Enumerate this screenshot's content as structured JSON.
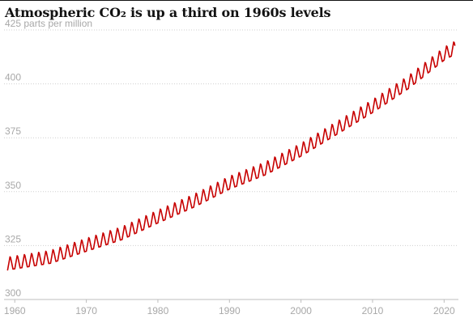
{
  "chart_data": {
    "type": "line",
    "title": "Atmospheric CO₂ is up a third on 1960s levels",
    "unit_label": "parts per million",
    "xlabel": "",
    "ylabel": "",
    "xlim": [
      1958.5,
      2022
    ],
    "ylim": [
      300,
      425
    ],
    "x_ticks": [
      1960,
      1970,
      1980,
      1990,
      2000,
      2010,
      2020
    ],
    "y_ticks": [
      300,
      325,
      350,
      375,
      400,
      425
    ],
    "grid": true,
    "grid_style": "horizontal dotted",
    "legend": "none",
    "series": [
      {
        "color": "#c70000",
        "sampling": "monthly",
        "start_year": 1959,
        "end_year": 2021.5,
        "trend_points": [
          [
            1959,
            316.9
          ],
          [
            1965,
            320.0
          ],
          [
            1970,
            325.6
          ],
          [
            1975,
            331.0
          ],
          [
            1980,
            338.7
          ],
          [
            1985,
            346.0
          ],
          [
            1990,
            354.4
          ],
          [
            1995,
            361.0
          ],
          [
            2000,
            369.7
          ],
          [
            2005,
            379.8
          ],
          [
            2010,
            389.9
          ],
          [
            2015,
            401.0
          ],
          [
            2020,
            414.2
          ],
          [
            2021.5,
            417.0
          ]
        ],
        "seasonal_amplitude": 3.2
      }
    ]
  }
}
